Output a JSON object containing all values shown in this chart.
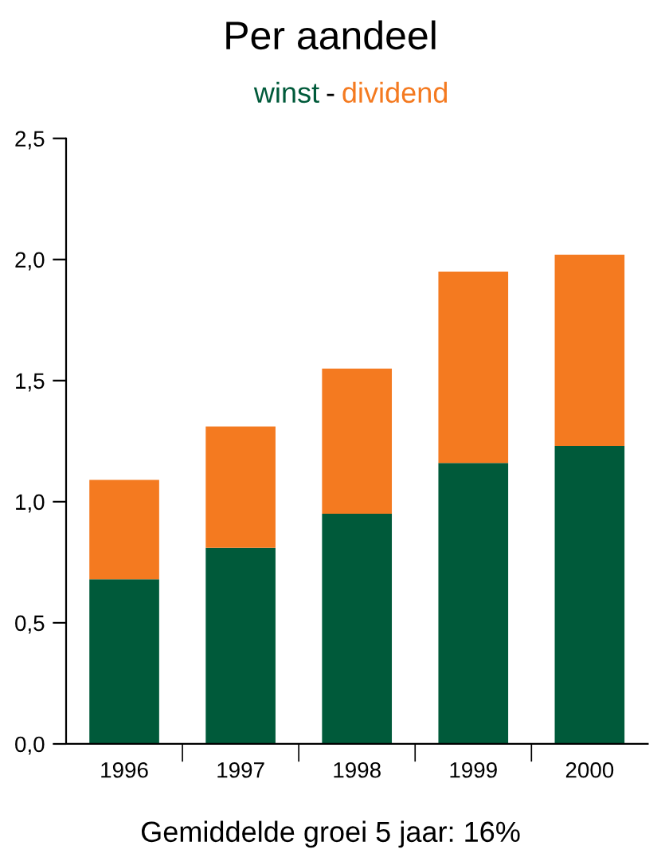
{
  "chart_data": {
    "type": "bar",
    "title": "Per aandeel",
    "stacked": true,
    "legend": "top",
    "grid": false,
    "categories": [
      "1996",
      "1997",
      "1998",
      "1999",
      "2000"
    ],
    "series": [
      {
        "name": "winst",
        "color": "#005a3a",
        "values": [
          0.68,
          0.81,
          0.95,
          1.16,
          1.23
        ]
      },
      {
        "name": "dividend",
        "color": "#f47a20",
        "values": [
          0.41,
          0.5,
          0.6,
          0.79,
          0.79
        ]
      }
    ],
    "ylim": [
      0,
      2.5
    ],
    "yticks": [
      {
        "value": 0,
        "label": "0,0"
      },
      {
        "value": 0.5,
        "label": "0,5"
      },
      {
        "value": 1,
        "label": "1,0"
      },
      {
        "value": 1.5,
        "label": "1,5"
      },
      {
        "value": 2,
        "label": "2,0"
      },
      {
        "value": 2.5,
        "label": "2,5"
      }
    ],
    "annotations": [
      "-",
      "Gemiddelde groei 5 jaar: 16%"
    ]
  }
}
